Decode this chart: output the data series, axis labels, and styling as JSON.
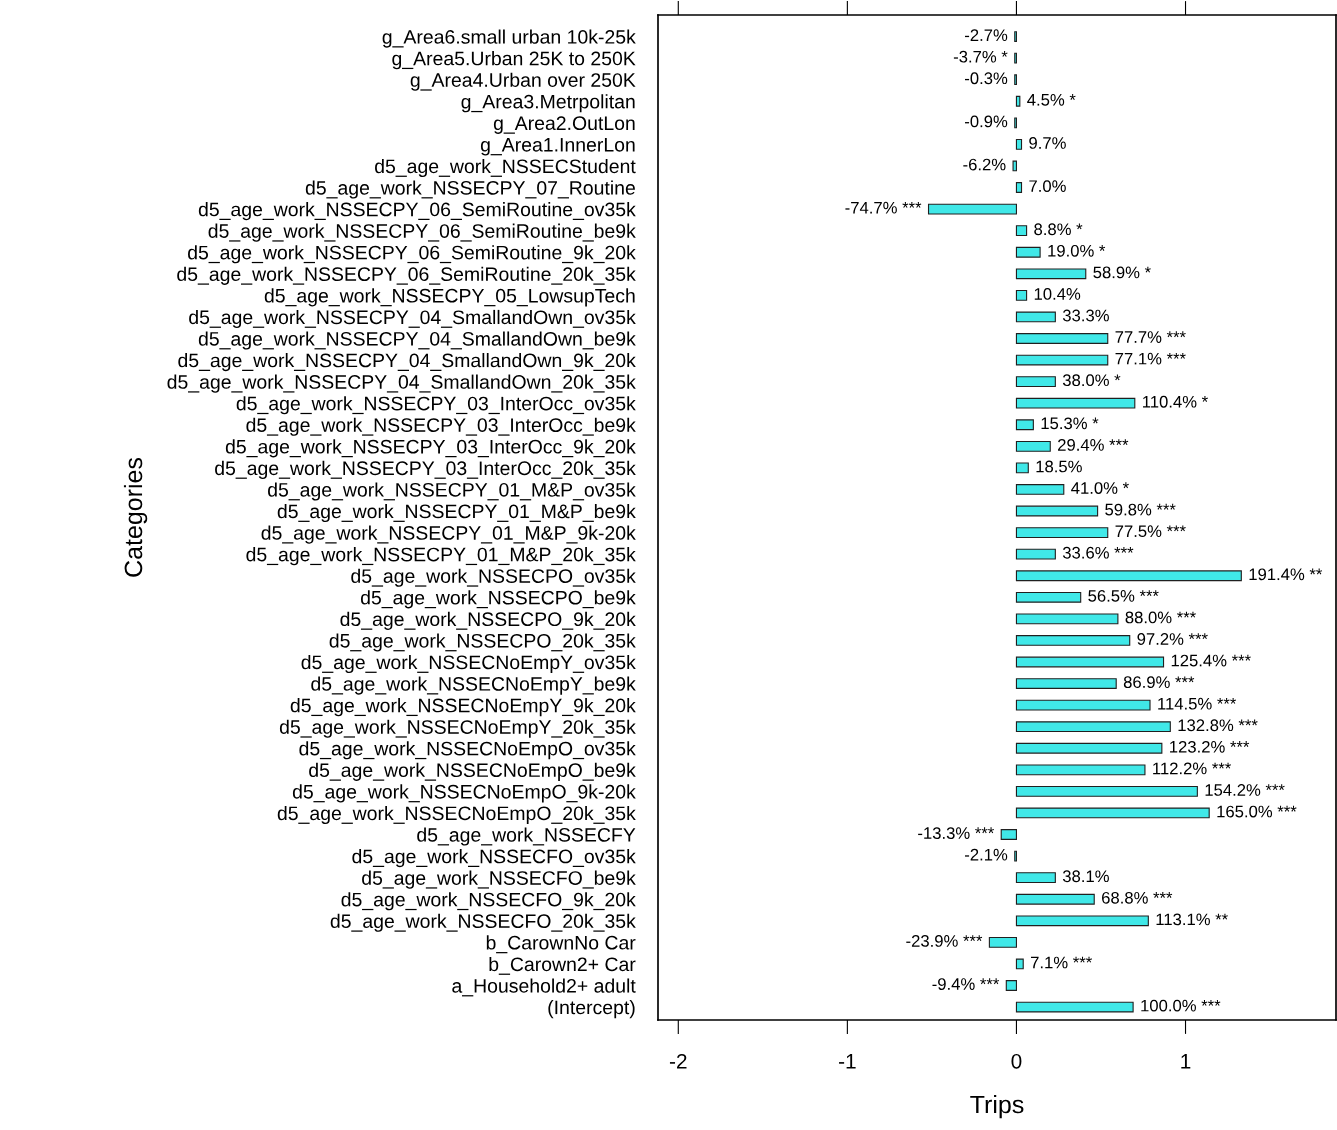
{
  "chart_data": {
    "type": "bar",
    "orientation": "horizontal",
    "xlabel": "Trips",
    "ylabel": "Categories",
    "categories": [
      "g_Area6.small urban 10k-25k",
      "g_Area5.Urban 25K to 250K",
      "g_Area4.Urban over 250K",
      "g_Area3.Metrpolitan",
      "g_Area2.OutLon",
      "g_Area1.InnerLon",
      "d5_age_work_NSSECStudent",
      "d5_age_work_NSSECPY_07_Routine",
      "d5_age_work_NSSECPY_06_SemiRoutine_ov35k",
      "d5_age_work_NSSECPY_06_SemiRoutine_be9k",
      "d5_age_work_NSSECPY_06_SemiRoutine_9k_20k",
      "d5_age_work_NSSECPY_06_SemiRoutine_20k_35k",
      "d5_age_work_NSSECPY_05_LowsupTech",
      "d5_age_work_NSSECPY_04_SmallandOwn_ov35k",
      "d5_age_work_NSSECPY_04_SmallandOwn_be9k",
      "d5_age_work_NSSECPY_04_SmallandOwn_9k_20k",
      "d5_age_work_NSSECPY_04_SmallandOwn_20k_35k",
      "d5_age_work_NSSECPY_03_InterOcc_ov35k",
      "d5_age_work_NSSECPY_03_InterOcc_be9k",
      "d5_age_work_NSSECPY_03_InterOcc_9k_20k",
      "d5_age_work_NSSECPY_03_InterOcc_20k_35k",
      "d5_age_work_NSSECPY_01_M&P_ov35k",
      "d5_age_work_NSSECPY_01_M&P_be9k",
      "d5_age_work_NSSECPY_01_M&P_9k-20k",
      "d5_age_work_NSSECPY_01_M&P_20k_35k",
      "d5_age_work_NSSECPO_ov35k",
      "d5_age_work_NSSECPO_be9k",
      "d5_age_work_NSSECPO_9k_20k",
      "d5_age_work_NSSECPO_20k_35k",
      "d5_age_work_NSSECNoEmpY_ov35k",
      "d5_age_work_NSSECNoEmpY_be9k",
      "d5_age_work_NSSECNoEmpY_9k_20k",
      "d5_age_work_NSSECNoEmpY_20k_35k",
      "d5_age_work_NSSECNoEmpO_ov35k",
      "d5_age_work_NSSECNoEmpO_be9k",
      "d5_age_work_NSSECNoEmpO_9k-20k",
      "d5_age_work_NSSECNoEmpO_20k_35k",
      "d5_age_work_NSSECFY",
      "d5_age_work_NSSECFO_ov35k",
      "d5_age_work_NSSECFO_be9k",
      "d5_age_work_NSSECFO_9k_20k",
      "d5_age_work_NSSECFO_20k_35k",
      "b_CarownNo Car",
      "b_Carown2+ Car",
      "a_Household2+ adult",
      "(Intercept)"
    ],
    "values": [
      -0.01,
      -0.01,
      -0.01,
      0.02,
      -0.01,
      0.03,
      -0.02,
      0.03,
      -0.52,
      0.06,
      0.14,
      0.41,
      0.06,
      0.23,
      0.54,
      0.54,
      0.23,
      0.7,
      0.1,
      0.2,
      0.07,
      0.28,
      0.48,
      0.54,
      0.23,
      1.33,
      0.38,
      0.6,
      0.67,
      0.87,
      0.59,
      0.79,
      0.91,
      0.86,
      0.76,
      1.07,
      1.14,
      -0.09,
      -0.01,
      0.23,
      0.46,
      0.78,
      -0.16,
      0.04,
      -0.06,
      0.69
    ],
    "annotations": [
      "-2.7%",
      "-3.7% *",
      "-0.3%",
      "4.5% *",
      "-0.9%",
      "9.7%",
      "-6.2%",
      "7.0%",
      "-74.7% ***",
      "8.8% *",
      "19.0% *",
      "58.9% *",
      "10.4%",
      "33.3%",
      "77.7% ***",
      "77.1% ***",
      "38.0% *",
      "110.4% *",
      "15.3% *",
      "29.4% ***",
      "18.5%",
      "41.0% *",
      "59.8% ***",
      "77.5% ***",
      "33.6% ***",
      "191.4% **",
      "56.5% ***",
      "88.0% ***",
      "97.2% ***",
      "125.4% ***",
      "86.9% ***",
      "114.5% ***",
      "132.8% ***",
      "123.2% ***",
      "112.2% ***",
      "154.2% ***",
      "165.0% ***",
      "-13.3% ***",
      "-2.1%",
      "38.1%",
      "68.8% ***",
      "113.1% **",
      "-23.9% ***",
      "7.1% ***",
      "-9.4% ***",
      "100.0% ***"
    ],
    "color": "#40e8e8",
    "xlim": [
      -2.12,
      1.89
    ],
    "xticks": [
      -2,
      -1,
      0,
      1
    ],
    "grid": false
  }
}
